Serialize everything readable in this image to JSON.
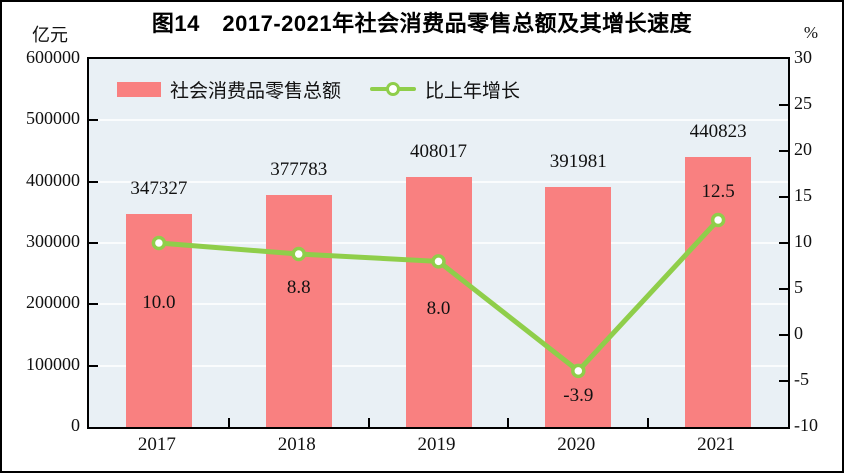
{
  "title": "图14　2017-2021年社会消费品零售总额及其增长速度",
  "left_axis_unit": "亿元",
  "right_axis_unit": "%",
  "legend": {
    "bar_label": "社会消费品零售总额",
    "line_label": "比上年增长"
  },
  "colors": {
    "bar": "#f98080",
    "line": "#8fce4a",
    "marker_fill": "#ffffff",
    "plot_bg": "#e9f0f5",
    "grid": "#fafcfd",
    "axis": "#000000",
    "text": "#111111"
  },
  "chart_data": {
    "type": "bar",
    "combo": "bar+line",
    "title": "图14　2017-2021年社会消费品零售总额及其增长速度",
    "categories": [
      "2017",
      "2018",
      "2019",
      "2020",
      "2021"
    ],
    "series": [
      {
        "name": "社会消费品零售总额",
        "type": "bar",
        "axis": "left",
        "values": [
          347327,
          377783,
          408017,
          391981,
          440823
        ],
        "labels": [
          "347327",
          "377783",
          "408017",
          "391981",
          "440823"
        ]
      },
      {
        "name": "比上年增长",
        "type": "line",
        "axis": "right",
        "values": [
          10.0,
          8.8,
          8.0,
          -3.9,
          12.5
        ],
        "labels": [
          "10.0",
          "8.8",
          "8.0",
          "-3.9",
          "12.5"
        ]
      }
    ],
    "left_axis": {
      "label": "亿元",
      "min": 0,
      "max": 600000,
      "step": 100000,
      "tick_labels": [
        "0",
        "100000",
        "200000",
        "300000",
        "400000",
        "500000",
        "600000"
      ]
    },
    "right_axis": {
      "label": "%",
      "min": -10,
      "max": 30,
      "step": 5,
      "tick_labels": [
        "-10",
        "-5",
        "0",
        "5",
        "10",
        "15",
        "20",
        "25",
        "30"
      ]
    },
    "layout_hints": {
      "grid": "horizontal-white-at-left-axis-ticks",
      "legend_position": "top-left-inside",
      "line_label_dy": [
        60,
        34,
        48,
        25,
        -28
      ],
      "bar_label_gap_above": 25
    }
  }
}
